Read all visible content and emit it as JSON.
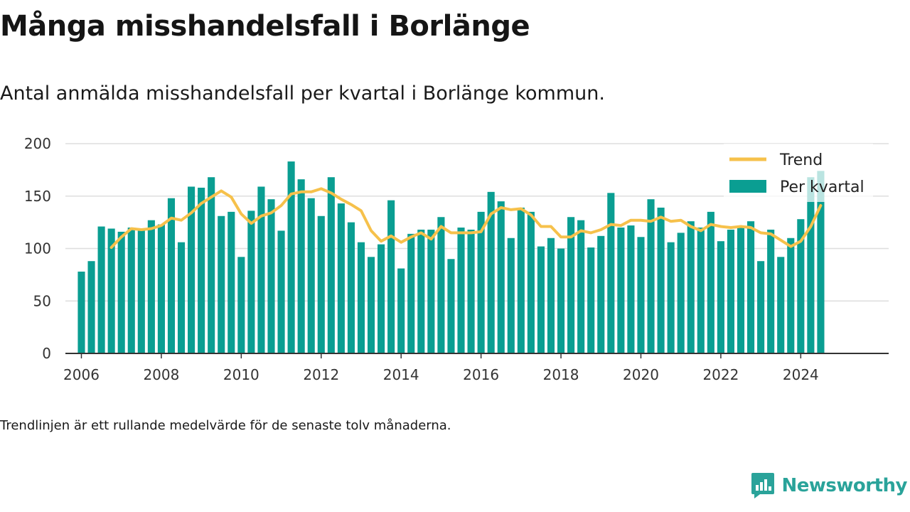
{
  "title": "Många misshandelsfall i Borlänge",
  "subtitle": "Antal anmälda misshandelsfall per kvartal i Borlänge kommun.",
  "footnote": "Trendlinjen är ett rullande medelvärde för de senaste tolv månaderna.",
  "brand": {
    "name": "Newsworthy",
    "icon": "newsworthy-logo-icon"
  },
  "colors": {
    "bar": "#0a9e92",
    "bar_light": "#5cc4bb",
    "trend": "#f6c14b",
    "grid": "#dedede",
    "axis": "#333333"
  },
  "chart_data": {
    "type": "bar",
    "grid": true,
    "legend_position": "top-right",
    "ylim": [
      0,
      200
    ],
    "yticks": [
      0,
      50,
      100,
      150,
      200
    ],
    "xlim": [
      2005.6,
      2026.2
    ],
    "xticks": [
      2006,
      2008,
      2010,
      2012,
      2014,
      2016,
      2018,
      2020,
      2022,
      2024
    ],
    "legend": [
      {
        "name": "Trend",
        "kind": "line"
      },
      {
        "name": "Per kvartal",
        "kind": "bar"
      }
    ],
    "series": [
      {
        "name": "Per kvartal",
        "type": "bar",
        "x": [
          2006.0,
          2006.25,
          2006.5,
          2006.75,
          2007.0,
          2007.25,
          2007.5,
          2007.75,
          2008.0,
          2008.25,
          2008.5,
          2008.75,
          2009.0,
          2009.25,
          2009.5,
          2009.75,
          2010.0,
          2010.25,
          2010.5,
          2010.75,
          2011.0,
          2011.25,
          2011.5,
          2011.75,
          2012.0,
          2012.25,
          2012.5,
          2012.75,
          2013.0,
          2013.25,
          2013.5,
          2013.75,
          2014.0,
          2014.25,
          2014.5,
          2014.75,
          2015.0,
          2015.25,
          2015.5,
          2015.75,
          2016.0,
          2016.25,
          2016.5,
          2016.75,
          2017.0,
          2017.25,
          2017.5,
          2017.75,
          2018.0,
          2018.25,
          2018.5,
          2018.75,
          2019.0,
          2019.25,
          2019.5,
          2019.75,
          2020.0,
          2020.25,
          2020.5,
          2020.75,
          2021.0,
          2021.25,
          2021.5,
          2021.75,
          2022.0,
          2022.25,
          2022.5,
          2022.75,
          2023.0,
          2023.25,
          2023.5,
          2023.75,
          2024.0,
          2024.25,
          2024.5
        ],
        "values": [
          78,
          88,
          121,
          119,
          116,
          120,
          117,
          127,
          123,
          148,
          106,
          159,
          158,
          168,
          131,
          135,
          92,
          136,
          159,
          147,
          117,
          183,
          166,
          148,
          131,
          168,
          143,
          125,
          106,
          92,
          104,
          146,
          81,
          114,
          118,
          118,
          130,
          90,
          120,
          118,
          135,
          154,
          145,
          110,
          139,
          135,
          102,
          110,
          100,
          130,
          127,
          101,
          112,
          153,
          120,
          122,
          111,
          147,
          139,
          106,
          115,
          126,
          120,
          135,
          107,
          118,
          122,
          126,
          88,
          118,
          92,
          110,
          128,
          168,
          174
        ]
      },
      {
        "name": "Trend",
        "type": "line",
        "x": [
          2006.75,
          2007.0,
          2007.25,
          2007.5,
          2007.75,
          2008.0,
          2008.25,
          2008.5,
          2008.75,
          2009.0,
          2009.25,
          2009.5,
          2009.75,
          2010.0,
          2010.25,
          2010.5,
          2010.75,
          2011.0,
          2011.25,
          2011.5,
          2011.75,
          2012.0,
          2012.25,
          2012.5,
          2012.75,
          2013.0,
          2013.25,
          2013.5,
          2013.75,
          2014.0,
          2014.25,
          2014.5,
          2014.75,
          2015.0,
          2015.25,
          2015.5,
          2015.75,
          2016.0,
          2016.25,
          2016.5,
          2016.75,
          2017.0,
          2017.25,
          2017.5,
          2017.75,
          2018.0,
          2018.25,
          2018.5,
          2018.75,
          2019.0,
          2019.25,
          2019.5,
          2019.75,
          2020.0,
          2020.25,
          2020.5,
          2020.75,
          2021.0,
          2021.25,
          2021.5,
          2021.75,
          2022.0,
          2022.25,
          2022.5,
          2022.75,
          2023.0,
          2023.25,
          2023.5,
          2023.75,
          2024.0,
          2024.25,
          2024.5
        ],
        "values": [
          101,
          111,
          119,
          118,
          119,
          122,
          129,
          127,
          134,
          143,
          149,
          155,
          149,
          133,
          124,
          131,
          134,
          141,
          152,
          154,
          154,
          157,
          153,
          147,
          142,
          136,
          117,
          107,
          112,
          106,
          111,
          115,
          109,
          121,
          115,
          115,
          115,
          116,
          133,
          139,
          137,
          138,
          132,
          121,
          121,
          111,
          111,
          117,
          115,
          118,
          123,
          122,
          127,
          127,
          126,
          130,
          126,
          127,
          121,
          117,
          123,
          121,
          120,
          121,
          120,
          115,
          114,
          108,
          102,
          107,
          121,
          141
        ]
      }
    ]
  }
}
